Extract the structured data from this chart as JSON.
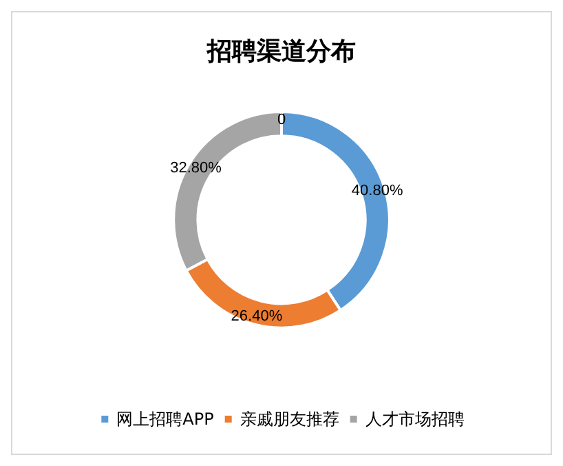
{
  "chart_data": {
    "type": "donut",
    "title": "招聘渠道分布",
    "categories": [
      "网上招聘APP",
      "亲戚朋友推荐",
      "人才市场招聘",
      null
    ],
    "values": [
      40.8,
      26.4,
      32.8,
      0
    ],
    "colors": [
      "#5b9bd5",
      "#ed7d31",
      "#a5a5a5",
      "#ffc000"
    ],
    "value_labels": [
      "40.80%",
      "26.40%",
      "32.80%",
      "0"
    ],
    "legend": "bottom"
  }
}
